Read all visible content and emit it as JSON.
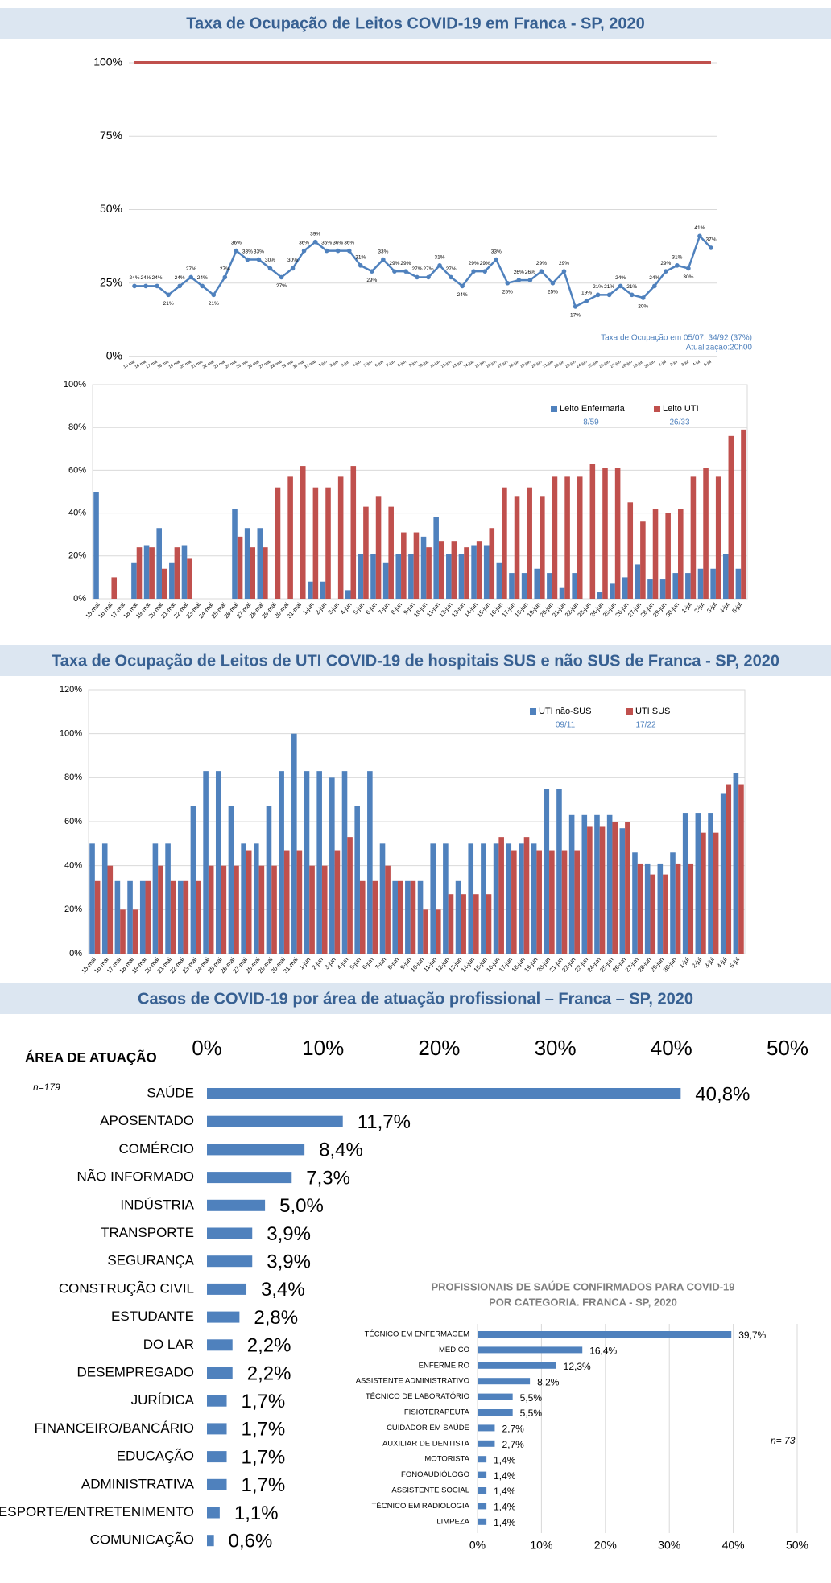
{
  "chart_data": [
    {
      "type": "line",
      "title": "Taxa de Ocupação de Leitos COVID-19 em Franca - SP, 2020",
      "categories": [
        "15-mai",
        "16-mai",
        "17-mai",
        "18-mai",
        "19-mai",
        "20-mai",
        "21-mai",
        "22-mai",
        "23-mai",
        "24-mai",
        "25-mai",
        "26-mai",
        "27-mai",
        "28-mai",
        "29-mai",
        "30-mai",
        "31-mai",
        "1-jun",
        "2-jun",
        "3-jun",
        "4-jun",
        "5-jun",
        "6-jun",
        "7-jun",
        "8-jun",
        "9-jun",
        "10-jun",
        "11-jun",
        "12-jun",
        "13-jun",
        "14-jun",
        "15-jun",
        "16-jun",
        "17-jun",
        "18-jun",
        "19-jun",
        "20-jun",
        "21-jun",
        "22-jun",
        "23-jun",
        "24-jun",
        "25-jun",
        "26-jun",
        "27-jun",
        "28-jun",
        "29-jun",
        "30-jun",
        "1-jul",
        "2-jul",
        "3-jul",
        "4-jul",
        "5-jul"
      ],
      "values": [
        24,
        24,
        24,
        21,
        24,
        27,
        24,
        21,
        27,
        36,
        33,
        33,
        30,
        27,
        30,
        36,
        39,
        36,
        36,
        36,
        31,
        29,
        33,
        29,
        29,
        27,
        27,
        31,
        27,
        24,
        29,
        29,
        33,
        25,
        26,
        26,
        29,
        25,
        29,
        17,
        19,
        21,
        21,
        24,
        21,
        20,
        24,
        29,
        31,
        30,
        41,
        37
      ],
      "value_labels": [
        "24%",
        "24%",
        "24%",
        "21%",
        "24%",
        "27%",
        "24%",
        "21%",
        "27%",
        "36%",
        "33%",
        "33%",
        "30%",
        "27%",
        "30%",
        "36%",
        "39%",
        "36%",
        "36%",
        "36%",
        "31%",
        "29%",
        "33%",
        "29%",
        "29%",
        "27%",
        "27%",
        "31%",
        "27%",
        "24%",
        "29%",
        "29%",
        "33%",
        "25%",
        "26%",
        "26%",
        "29%",
        "25%",
        "29%",
        "17%",
        "19%",
        "21%",
        "21%",
        "24%",
        "21%",
        "20%",
        "24%",
        "29%",
        "31%",
        "30%",
        "41%",
        "37%"
      ],
      "color": "#4f81bd",
      "reference_line": {
        "value": 100,
        "color": "#c0504d"
      },
      "ylim": [
        0,
        100
      ],
      "yticks": [
        {
          "value": 0,
          "label": "0%"
        },
        {
          "value": 25,
          "label": "25%"
        },
        {
          "value": 50,
          "label": "50%"
        },
        {
          "value": 75,
          "label": "75%"
        },
        {
          "value": 100,
          "label": "100%"
        }
      ],
      "grid": true,
      "annotations": [
        "Taxa de Ocupação em 05/07: 34/92 (37%)",
        "Atualização:20h00"
      ]
    },
    {
      "type": "bar",
      "categories": [
        "15-mai",
        "16-mai",
        "17-mai",
        "18-mai",
        "19-mai",
        "20-mai",
        "21-mai",
        "22-mai",
        "23-mai",
        "24-mai",
        "25-mai",
        "26-mai",
        "27-mai",
        "28-mai",
        "29-mai",
        "30-mai",
        "31-mai",
        "1-jun",
        "2-jun",
        "3-jun",
        "4-jun",
        "5-jun",
        "6-jun",
        "7-jun",
        "8-jun",
        "9-jun",
        "10-jun",
        "11-jun",
        "12-jun",
        "13-jun",
        "14-jun",
        "15-jun",
        "16-jun",
        "17-jun",
        "18-jun",
        "19-jun",
        "20-jun",
        "21-jun",
        "22-jun",
        "23-jun",
        "24-jun",
        "25-jun",
        "26-jun",
        "27-jun",
        "28-jun",
        "29-jun",
        "30-jun",
        "1-jul",
        "2-jul",
        "3-jul",
        "4-jul",
        "5-jul"
      ],
      "series": [
        {
          "name": "Leito Enfermaria",
          "color": "#4f81bd",
          "note": "8/59",
          "values": [
            50,
            0,
            0,
            17,
            25,
            33,
            17,
            25,
            0,
            0,
            0,
            42,
            33,
            33,
            0,
            0,
            0,
            8,
            8,
            0,
            4,
            21,
            21,
            17,
            21,
            21,
            29,
            38,
            21,
            21,
            25,
            25,
            17,
            12,
            12,
            14,
            12,
            5,
            12,
            0,
            3,
            7,
            10,
            16,
            9,
            9,
            12,
            12,
            14,
            14,
            21,
            14
          ]
        },
        {
          "name": "Leito UTI",
          "color": "#c0504d",
          "note": "26/33",
          "values": [
            0,
            10,
            0,
            24,
            24,
            14,
            24,
            19,
            0,
            0,
            0,
            29,
            24,
            24,
            52,
            57,
            62,
            52,
            52,
            57,
            62,
            43,
            48,
            43,
            31,
            31,
            24,
            27,
            27,
            24,
            27,
            33,
            52,
            48,
            52,
            48,
            57,
            57,
            57,
            63,
            61,
            61,
            45,
            36,
            42,
            40,
            42,
            57,
            61,
            57,
            76,
            79
          ]
        }
      ],
      "ylim": [
        0,
        100
      ],
      "yticks": [
        {
          "value": 0,
          "label": "0%"
        },
        {
          "value": 20,
          "label": "20%"
        },
        {
          "value": 40,
          "label": "40%"
        },
        {
          "value": 60,
          "label": "60%"
        },
        {
          "value": 80,
          "label": "80%"
        },
        {
          "value": 100,
          "label": "100%"
        }
      ],
      "grid": true
    },
    {
      "type": "bar",
      "title": "Taxa de Ocupação de Leitos de UTI  COVID-19 de hospitais SUS e não SUS de Franca - SP, 2020",
      "categories": [
        "15-mai",
        "16-mai",
        "17-mai",
        "18-mai",
        "19-mai",
        "20-mai",
        "21-mai",
        "22-mai",
        "23-mai",
        "24-mai",
        "25-mai",
        "26-mai",
        "27-mai",
        "28-mai",
        "29-mai",
        "30-mai",
        "31-mai",
        "1-jun",
        "2-jun",
        "3-jun",
        "4-jun",
        "5-jun",
        "6-jun",
        "7-jun",
        "8-jun",
        "9-jun",
        "10-jun",
        "11-jun",
        "12-jun",
        "13-jun",
        "14-jun",
        "15-jun",
        "16-jun",
        "17-jun",
        "18-jun",
        "19-jun",
        "20-jun",
        "21-jun",
        "22-jun",
        "23-jun",
        "24-jun",
        "25-jun",
        "26-jun",
        "27-jun",
        "28-jun",
        "29-jun",
        "30-jun",
        "1-jul",
        "2-jul",
        "3-jul",
        "4-jul",
        "5-jul"
      ],
      "series": [
        {
          "name": "UTI não-SUS",
          "color": "#4f81bd",
          "note": "09/11",
          "values": [
            50,
            50,
            33,
            33,
            33,
            50,
            50,
            33,
            67,
            83,
            83,
            67,
            50,
            50,
            67,
            83,
            100,
            83,
            83,
            80,
            83,
            67,
            83,
            50,
            33,
            33,
            33,
            50,
            50,
            33,
            50,
            50,
            50,
            50,
            50,
            50,
            75,
            75,
            63,
            63,
            63,
            63,
            57,
            46,
            41,
            41,
            46,
            64,
            64,
            64,
            73,
            82
          ]
        },
        {
          "name": "UTI SUS",
          "color": "#c0504d",
          "note": "17/22",
          "values": [
            33,
            40,
            20,
            20,
            33,
            40,
            33,
            33,
            33,
            40,
            40,
            40,
            47,
            40,
            40,
            47,
            47,
            40,
            40,
            47,
            53,
            33,
            33,
            40,
            33,
            33,
            20,
            20,
            27,
            27,
            27,
            27,
            53,
            47,
            53,
            47,
            47,
            47,
            47,
            58,
            58,
            60,
            60,
            41,
            36,
            36,
            41,
            41,
            55,
            55,
            77,
            77
          ]
        }
      ],
      "ylim": [
        0,
        120
      ],
      "yticks": [
        {
          "value": 0,
          "label": "0%"
        },
        {
          "value": 20,
          "label": "20%"
        },
        {
          "value": 40,
          "label": "40%"
        },
        {
          "value": 60,
          "label": "60%"
        },
        {
          "value": 80,
          "label": "80%"
        },
        {
          "value": 100,
          "label": "100%"
        },
        {
          "value": 120,
          "label": "120%"
        }
      ],
      "grid": true
    },
    {
      "type": "barh",
      "title": "Casos de COVID-19 por área de atuação profissional – Franca – SP, 2020",
      "axis_header": "ÁREA DE ATUAÇÃO",
      "note": "n=179",
      "categories": [
        "SAÚDE",
        "APOSENTADO",
        "COMÉRCIO",
        "NÃO INFORMADO",
        "INDÚSTRIA",
        "TRANSPORTE",
        "SEGURANÇA",
        "CONSTRUÇÃO CIVIL",
        "ESTUDANTE",
        "DO LAR",
        "DESEMPREGADO",
        "JURÍDICA",
        "FINANCEIRO/BANCÁRIO",
        "EDUCAÇÃO",
        "ADMINISTRATIVA",
        "ESPORTE/ENTRETENIMENTO",
        "COMUNICAÇÃO"
      ],
      "values": [
        40.8,
        11.7,
        8.4,
        7.3,
        5.0,
        3.9,
        3.9,
        3.4,
        2.8,
        2.2,
        2.2,
        1.7,
        1.7,
        1.7,
        1.7,
        1.1,
        0.6
      ],
      "value_labels": [
        "40,8%",
        "11,7%",
        "8,4%",
        "7,3%",
        "5,0%",
        "3,9%",
        "3,9%",
        "3,4%",
        "2,8%",
        "2,2%",
        "2,2%",
        "1,7%",
        "1,7%",
        "1,7%",
        "1,7%",
        "1,1%",
        "0,6%"
      ],
      "color": "#4f81bd",
      "xlim": [
        0,
        50
      ],
      "xticks": [
        {
          "value": 0,
          "label": "0%"
        },
        {
          "value": 10,
          "label": "10%"
        },
        {
          "value": 20,
          "label": "20%"
        },
        {
          "value": 30,
          "label": "30%"
        },
        {
          "value": 40,
          "label": "40%"
        },
        {
          "value": 50,
          "label": "50%"
        }
      ]
    },
    {
      "type": "barh",
      "title_lines": [
        "PROFISSIONAIS DE SAÚDE CONFIRMADOS PARA COVID-19",
        "POR CATEGORIA. FRANCA - SP, 2020"
      ],
      "note": "n= 73",
      "categories": [
        "TÉCNICO EM ENFERMAGEM",
        "MÉDICO",
        "ENFERMEIRO",
        "ASSISTENTE ADMINISTRATIVO",
        "TÉCNICO DE LABORATÓRIO",
        "FISIOTERAPEUTA",
        "CUIDADOR EM SAÚDE",
        "AUXILIAR DE DENTISTA",
        "MOTORISTA",
        "FONOAUDIÓLOGO",
        "ASSISTENTE SOCIAL",
        "TÉCNICO EM RADIOLOGIA",
        "LIMPEZA"
      ],
      "values": [
        39.7,
        16.4,
        12.3,
        8.2,
        5.5,
        5.5,
        2.7,
        2.7,
        1.4,
        1.4,
        1.4,
        1.4,
        1.4
      ],
      "value_labels": [
        "39,7%",
        "16,4%",
        "12,3%",
        "8,2%",
        "5,5%",
        "5,5%",
        "2,7%",
        "2,7%",
        "1,4%",
        "1,4%",
        "1,4%",
        "1,4%",
        "1,4%"
      ],
      "color": "#4f81bd",
      "xlim": [
        0,
        50
      ],
      "xticks": [
        {
          "value": 0,
          "label": "0%"
        },
        {
          "value": 10,
          "label": "10%"
        },
        {
          "value": 20,
          "label": "20%"
        },
        {
          "value": 30,
          "label": "30%"
        },
        {
          "value": 40,
          "label": "40%"
        },
        {
          "value": 50,
          "label": "50%"
        }
      ],
      "grid": true
    }
  ]
}
